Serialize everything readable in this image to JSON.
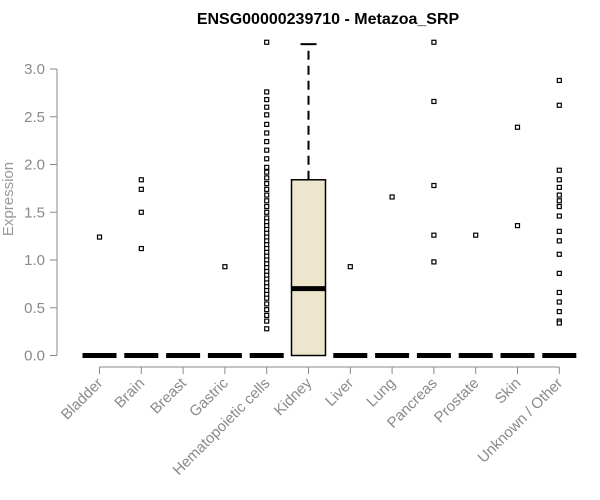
{
  "chart_data": {
    "type": "box",
    "title": "ENSG00000239710 - Metazoa_SRP",
    "xlabel": "",
    "ylabel": "Expression",
    "ylim": [
      0,
      3.3
    ],
    "yticks": [
      0.0,
      0.5,
      1.0,
      1.5,
      2.0,
      2.5,
      3.0
    ],
    "ytick_labels": [
      "0.0",
      "0.5",
      "1.0",
      "1.5",
      "2.0",
      "2.5",
      "3.0"
    ],
    "categories": [
      "Bladder",
      "Brain",
      "Breast",
      "Gastric",
      "Hematopoietic cells",
      "Kidney",
      "Liver",
      "Lung",
      "Pancreas",
      "Prostate",
      "Skin",
      "Unknown / Other"
    ],
    "boxes": [
      {
        "category": "Bladder",
        "q1": 0,
        "median": 0,
        "q3": 0,
        "whisker_low": 0,
        "whisker_high": 0,
        "outliers": [
          1.24
        ]
      },
      {
        "category": "Brain",
        "q1": 0,
        "median": 0,
        "q3": 0,
        "whisker_low": 0,
        "whisker_high": 0,
        "outliers": [
          1.84,
          1.74,
          1.5,
          1.12
        ]
      },
      {
        "category": "Breast",
        "q1": 0,
        "median": 0,
        "q3": 0,
        "whisker_low": 0,
        "whisker_high": 0,
        "outliers": []
      },
      {
        "category": "Gastric",
        "q1": 0,
        "median": 0,
        "q3": 0,
        "whisker_low": 0,
        "whisker_high": 0,
        "outliers": [
          0.93
        ]
      },
      {
        "category": "Hematopoietic cells",
        "q1": 0,
        "median": 0,
        "q3": 0,
        "whisker_low": 0,
        "whisker_high": 0,
        "outliers": [
          3.28,
          2.76,
          2.68,
          2.6,
          2.52,
          2.42,
          2.33,
          2.24,
          2.15,
          2.06,
          1.97,
          1.92,
          1.86,
          1.8,
          1.74,
          1.68,
          1.62,
          1.56,
          1.5,
          1.44,
          1.4,
          1.36,
          1.32,
          1.28,
          1.24,
          1.2,
          1.16,
          1.12,
          1.08,
          1.04,
          1.0,
          0.96,
          0.92,
          0.88,
          0.84,
          0.8,
          0.76,
          0.72,
          0.68,
          0.64,
          0.6,
          0.54,
          0.48,
          0.42,
          0.36,
          0.28
        ]
      },
      {
        "category": "Kidney",
        "q1": 0,
        "median": 0.7,
        "q3": 1.84,
        "whisker_low": 0,
        "whisker_high": 3.26,
        "outliers": []
      },
      {
        "category": "Liver",
        "q1": 0,
        "median": 0,
        "q3": 0,
        "whisker_low": 0,
        "whisker_high": 0,
        "outliers": [
          0.93
        ]
      },
      {
        "category": "Lung",
        "q1": 0,
        "median": 0,
        "q3": 0,
        "whisker_low": 0,
        "whisker_high": 0,
        "outliers": [
          1.66
        ]
      },
      {
        "category": "Pancreas",
        "q1": 0,
        "median": 0,
        "q3": 0,
        "whisker_low": 0,
        "whisker_high": 0,
        "outliers": [
          3.28,
          2.66,
          1.78,
          1.26,
          0.98
        ]
      },
      {
        "category": "Prostate",
        "q1": 0,
        "median": 0,
        "q3": 0,
        "whisker_low": 0,
        "whisker_high": 0,
        "outliers": [
          1.26
        ]
      },
      {
        "category": "Skin",
        "q1": 0,
        "median": 0,
        "q3": 0,
        "whisker_low": 0,
        "whisker_high": 0,
        "outliers": [
          2.39,
          1.36
        ]
      },
      {
        "category": "Unknown / Other",
        "q1": 0,
        "median": 0,
        "q3": 0,
        "whisker_low": 0,
        "whisker_high": 0,
        "outliers": [
          2.88,
          2.62,
          1.94,
          1.84,
          1.76,
          1.68,
          1.62,
          1.56,
          1.46,
          1.3,
          1.2,
          1.06,
          0.86,
          0.66,
          0.56,
          0.46,
          0.36,
          0.34
        ]
      }
    ],
    "colors": {
      "box_fill": "#ede6cc",
      "box_stroke": "#000000",
      "axis": "#8a8a8a",
      "outlier": "#000000"
    },
    "grid": false,
    "legend": "none"
  }
}
